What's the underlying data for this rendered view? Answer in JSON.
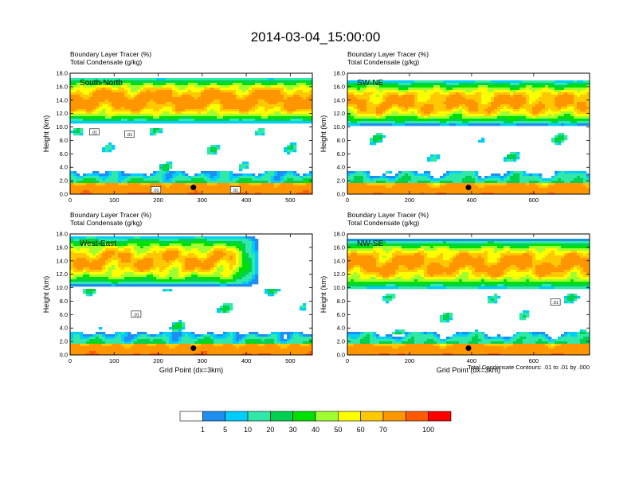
{
  "figure": {
    "title": "2014-03-04_15:00:00",
    "footnote": "Total Condensate Contours: .01 to .01 by .000"
  },
  "chart_data": [
    {
      "type": "heatmap",
      "panel_label": "South-North",
      "left_title": "Boundary Layer Tracer   (%)",
      "left_subtitle": "Total Condensate   (g/kg)",
      "xlabel": "",
      "ylabel": "Height (km)",
      "xlim": [
        0,
        550
      ],
      "ylim": [
        0,
        18
      ],
      "x_ticks": [
        "0",
        "100",
        "200",
        "300",
        "400",
        "500"
      ],
      "x_tick_values": [
        0,
        100,
        200,
        300,
        400,
        500
      ],
      "y_ticks": [
        "0.0",
        "2.0",
        "4.0",
        "6.0",
        "8.0",
        "10.0",
        "12.0",
        "14.0",
        "16.0",
        "18.0"
      ],
      "contour_labels": [
        {
          "text": ".01",
          "x": 55,
          "y": 9.2
        },
        {
          "text": ".01",
          "x": 135,
          "y": 8.9
        },
        {
          "text": ".01",
          "x": 195,
          "y": 0.6
        },
        {
          "text": ".01",
          "x": 375,
          "y": 0.6
        }
      ],
      "marker": {
        "x": 280,
        "y": 1.0
      },
      "upper_layer": {
        "x0": 0,
        "x1": 550,
        "y_base": 11.8,
        "y_top": 16.2,
        "peak": 78
      }
    },
    {
      "type": "heatmap",
      "panel_label": "SW-NE",
      "left_title": "Boundary Layer Tracer   (%)",
      "left_subtitle": "Total Condensate   (g/kg)",
      "xlabel": "",
      "ylabel": "Height (km)",
      "xlim": [
        0,
        780
      ],
      "ylim": [
        0,
        18
      ],
      "x_ticks": [
        "0",
        "200",
        "400",
        "600"
      ],
      "x_tick_values": [
        0,
        200,
        400,
        600
      ],
      "y_ticks": [
        "0.0",
        "2.0",
        "4.0",
        "6.0",
        "8.0",
        "10.0",
        "12.0",
        "14.0",
        "16.0",
        "18.0"
      ],
      "contour_labels": [],
      "marker": {
        "x": 390,
        "y": 1.0
      },
      "upper_layer": {
        "x0": 0,
        "x1": 780,
        "y_base": 11.5,
        "y_top": 15.8,
        "peak": 72
      }
    },
    {
      "type": "heatmap",
      "panel_label": "West-East",
      "left_title": "Boundary Layer Tracer   (%)",
      "left_subtitle": "Total Condensate   (g/kg)",
      "xlabel": "Grid Point (dx=3km)",
      "ylabel": "Height (km)",
      "xlim": [
        0,
        550
      ],
      "ylim": [
        0,
        18
      ],
      "x_ticks": [
        "0",
        "100",
        "200",
        "300",
        "400",
        "500"
      ],
      "x_tick_values": [
        0,
        100,
        200,
        300,
        400,
        500
      ],
      "y_ticks": [
        "0.0",
        "2.0",
        "4.0",
        "6.0",
        "8.0",
        "10.0",
        "12.0",
        "14.0",
        "16.0",
        "18.0"
      ],
      "contour_labels": [
        {
          "text": ".01",
          "x": 150,
          "y": 6.0
        }
      ],
      "marker": {
        "x": 280,
        "y": 1.0
      },
      "upper_layer": {
        "x0": 0,
        "x1": 430,
        "y_base": 11.5,
        "y_top": 16.5,
        "peak": 70
      }
    },
    {
      "type": "heatmap",
      "panel_label": "NW-SE",
      "left_title": "Boundary Layer Tracer   (%)",
      "left_subtitle": "Total Condensate   (g/kg)",
      "xlabel": "Grid Point (dx=3km)",
      "ylabel": "",
      "xlim": [
        0,
        780
      ],
      "ylim": [
        0,
        18
      ],
      "x_ticks": [
        "0",
        "200",
        "400",
        "600"
      ],
      "x_tick_values": [
        0,
        200,
        400,
        600
      ],
      "y_ticks": [
        "0.0",
        "2.0",
        "4.0",
        "6.0",
        "8.0",
        "10.0",
        "12.0",
        "14.0",
        "16.0",
        "18.0"
      ],
      "contour_labels": [
        {
          "text": ".01",
          "x": 670,
          "y": 7.8
        }
      ],
      "marker": {
        "x": 390,
        "y": 1.0
      },
      "upper_layer": {
        "x0": 0,
        "x1": 780,
        "y_base": 11.0,
        "y_top": 16.0,
        "peak": 75
      }
    }
  ],
  "colorbar": {
    "levels": [
      "1",
      "5",
      "10",
      "20",
      "30",
      "40",
      "50",
      "60",
      "70",
      "100"
    ],
    "colors": [
      "#ffffff",
      "#1e8ef0",
      "#00cdff",
      "#30e8a8",
      "#00d050",
      "#00e000",
      "#a0ff30",
      "#ffff00",
      "#ffc800",
      "#ff9600",
      "#ff5a00",
      "#ff0000"
    ]
  }
}
